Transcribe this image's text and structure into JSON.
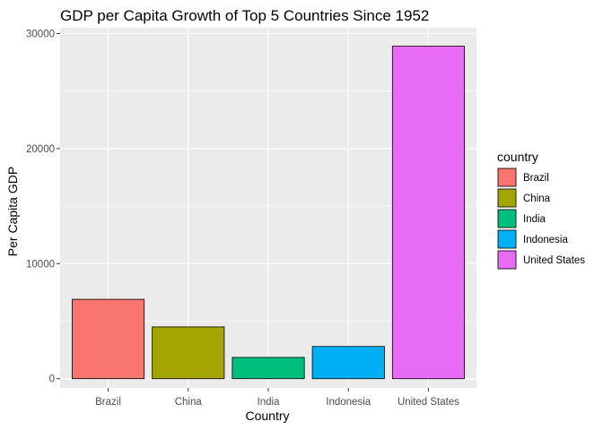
{
  "chart_data": {
    "type": "bar",
    "title": "GDP per Capita Growth of Top 5 Countries Since 1952",
    "xlabel": "Country",
    "ylabel": "Per Capita GDP",
    "categories": [
      "Brazil",
      "China",
      "India",
      "Indonesia",
      "United States"
    ],
    "values": [
      6900,
      4500,
      1850,
      2800,
      28900
    ],
    "colors": [
      "#F8766D",
      "#A3A500",
      "#00BF7D",
      "#00B0F6",
      "#E76BF3"
    ],
    "ylim": [
      -800,
      30500
    ],
    "yticks": [
      0,
      10000,
      20000,
      30000
    ],
    "ytick_labels": [
      "0",
      "10000",
      "20000",
      "30000"
    ],
    "grid": true,
    "panel_background": "#EBEBEB",
    "legend": {
      "title": "country",
      "position": "right",
      "items": [
        "Brazil",
        "China",
        "India",
        "Indonesia",
        "United States"
      ]
    }
  }
}
